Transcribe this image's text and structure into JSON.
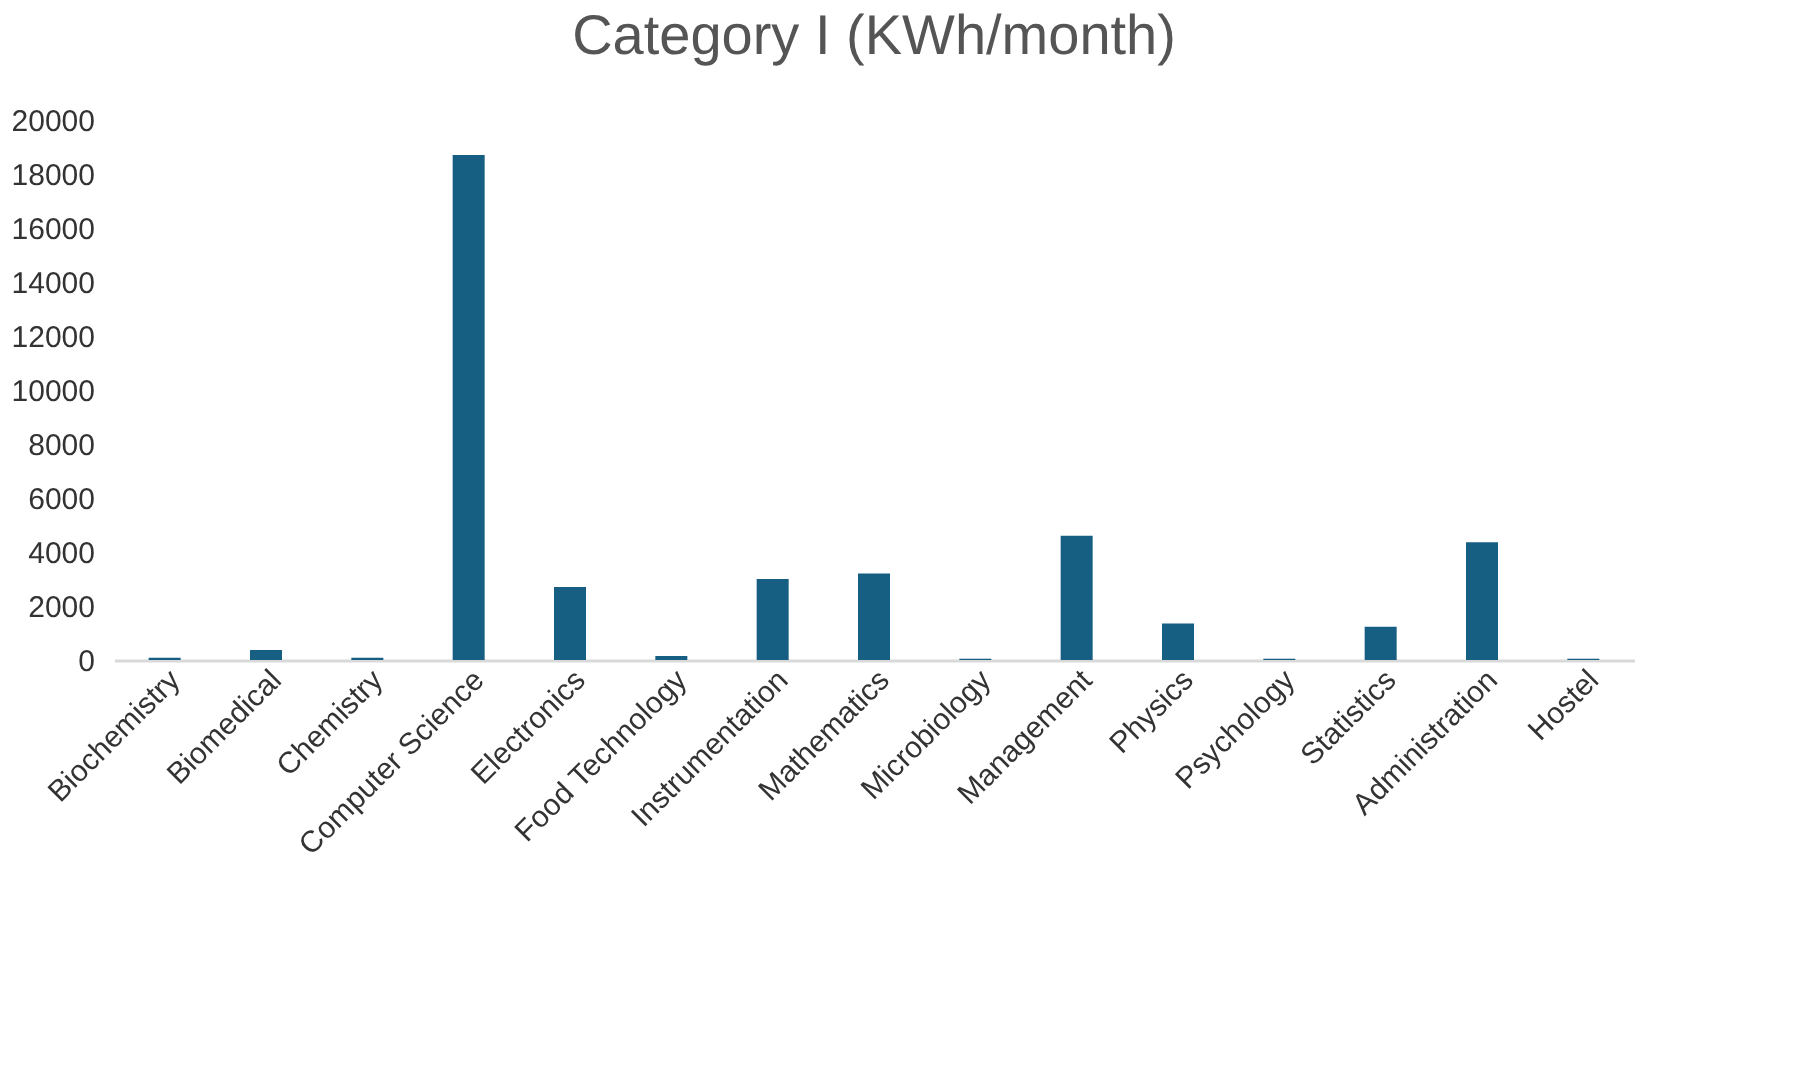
{
  "chart_data": {
    "type": "bar",
    "title": "Category I  (KWh/month)",
    "categories": [
      "Biochemistry",
      "Biomedical",
      "Chemistry",
      "Computer Science",
      "Electronics",
      "Food Technology",
      "Instrumentation",
      "Mathematics",
      "Microbiology",
      "Management",
      "Physics",
      "Psychology",
      "Statistics",
      "Administration",
      "Hostel"
    ],
    "values": [
      80,
      370,
      80,
      18700,
      2700,
      150,
      3000,
      3200,
      50,
      4600,
      1350,
      50,
      1230,
      4360,
      50
    ],
    "color": "#175e83",
    "ylim": [
      0,
      20000
    ],
    "yticks": [
      0,
      2000,
      4000,
      6000,
      8000,
      10000,
      12000,
      14000,
      16000,
      18000,
      20000
    ],
    "grid": false
  }
}
